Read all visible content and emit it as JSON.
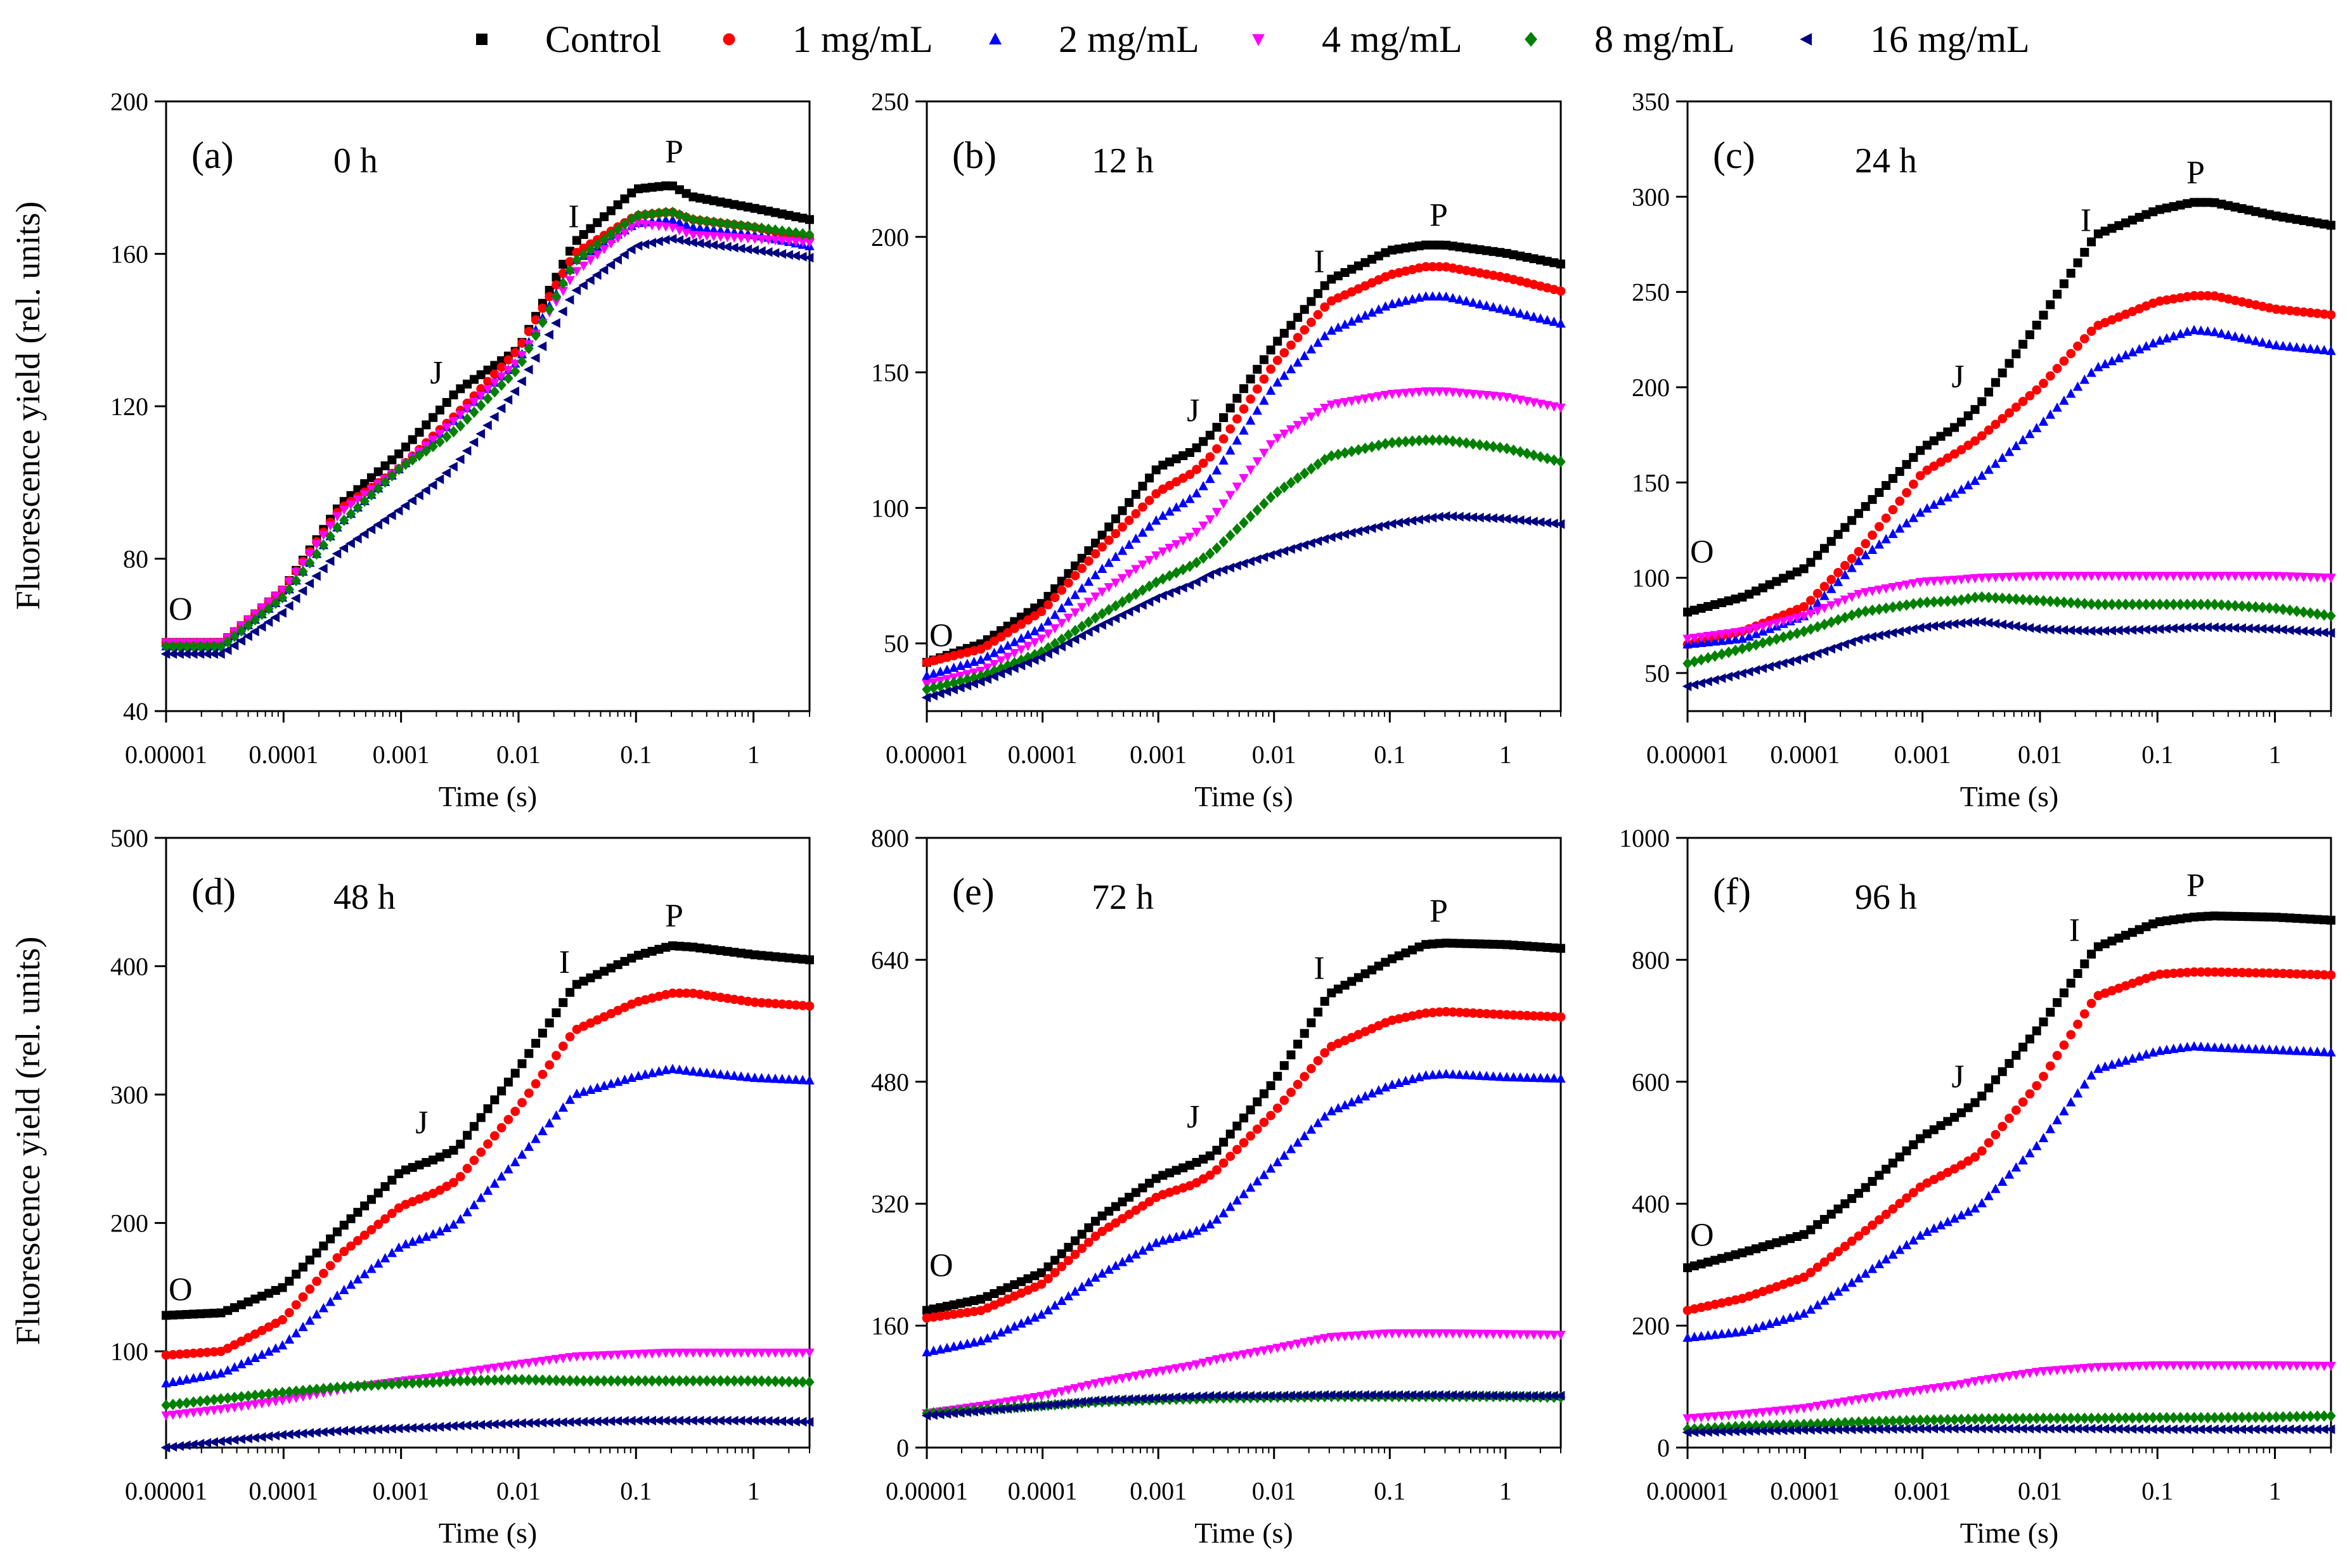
{
  "figure": {
    "ylabel": "Fluorescence yield (rel. units)",
    "xlabel": "Time (s)",
    "legend": [
      {
        "name": "Control",
        "color": "#000000",
        "marker": "square"
      },
      {
        "name": "1 mg/mL",
        "color": "#ff0000",
        "marker": "circle"
      },
      {
        "name": "2 mg/mL",
        "color": "#0000ff",
        "marker": "triangle-up"
      },
      {
        "name": "4 mg/mL",
        "color": "#ff00ff",
        "marker": "triangle-down"
      },
      {
        "name": "8 mg/mL",
        "color": "#008000",
        "marker": "diamond"
      },
      {
        "name": "16 mg/mL",
        "color": "#000080",
        "marker": "triangle-left"
      }
    ]
  },
  "chart_data": [
    {
      "type": "scatter",
      "panel": "(a)",
      "title": "0 h",
      "xlabel": "Time (s)",
      "ylabel": "Fluorescence yield (rel. units)",
      "xscale": "log",
      "xlim": [
        1e-05,
        3
      ],
      "ylim": [
        40,
        200
      ],
      "yticks": [
        40,
        80,
        120,
        160,
        200
      ],
      "xticks": [
        1e-05,
        0.0001,
        0.001,
        0.01,
        0.1,
        1
      ],
      "xticklabels": [
        "0.00001",
        "0.0001",
        "0.001",
        "0.01",
        "0.1",
        "1"
      ],
      "point_labels": [
        {
          "text": "O",
          "x": 1e-05,
          "y": 59
        },
        {
          "text": "J",
          "x": 0.002,
          "y": 121
        },
        {
          "text": "I",
          "x": 0.03,
          "y": 162
        },
        {
          "text": "P",
          "x": 0.2,
          "y": 179
        }
      ],
      "knot_x": [
        1e-05,
        3e-05,
        0.0001,
        0.0003,
        0.001,
        0.002,
        0.003,
        0.01,
        0.03,
        0.1,
        0.2,
        0.3,
        1,
        3
      ],
      "series": [
        {
          "name": "Control",
          "values": [
            58,
            58,
            72,
            94,
            108,
            118,
            124,
            135,
            163,
            177,
            178,
            175,
            172,
            169
          ]
        },
        {
          "name": "1 mg/mL",
          "values": [
            58,
            58,
            72,
            93,
            104,
            113,
            118,
            135,
            160,
            170,
            171,
            169,
            167,
            164
          ]
        },
        {
          "name": "2 mg/mL",
          "values": [
            57,
            57,
            70,
            89,
            104,
            112,
            117,
            132,
            158,
            168,
            169,
            167,
            165,
            162
          ]
        },
        {
          "name": "4 mg/mL",
          "values": [
            58,
            58,
            72,
            92,
            104,
            112,
            117,
            132,
            155,
            168,
            167,
            165,
            164,
            163
          ]
        },
        {
          "name": "8 mg/mL",
          "values": [
            57,
            57,
            70,
            89,
            104,
            110,
            114,
            130,
            158,
            170,
            171,
            169,
            167,
            165
          ]
        },
        {
          "name": "16 mg/mL",
          "values": [
            55,
            55,
            66,
            82,
            93,
            100,
            105,
            125,
            150,
            162,
            164,
            163,
            161,
            159
          ]
        }
      ]
    },
    {
      "type": "scatter",
      "panel": "(b)",
      "title": "12 h",
      "xlabel": "Time (s)",
      "ylabel": "",
      "xscale": "log",
      "xlim": [
        1e-05,
        3
      ],
      "ylim": [
        25,
        250
      ],
      "yticks": [
        50,
        100,
        150,
        200,
        250
      ],
      "xticks": [
        1e-05,
        0.0001,
        0.001,
        0.01,
        0.1,
        1
      ],
      "xticklabels": [
        "0.00001",
        "0.0001",
        "0.001",
        "0.01",
        "0.1",
        "1"
      ],
      "point_labels": [
        {
          "text": "O",
          "x": 1e-05,
          "y": 42
        },
        {
          "text": "J",
          "x": 0.002,
          "y": 125
        },
        {
          "text": "I",
          "x": 0.025,
          "y": 180
        },
        {
          "text": "P",
          "x": 0.25,
          "y": 197
        }
      ],
      "knot_x": [
        1e-05,
        3e-05,
        0.0001,
        0.0003,
        0.001,
        0.002,
        0.003,
        0.01,
        0.03,
        0.1,
        0.2,
        0.3,
        1,
        3
      ],
      "series": [
        {
          "name": "Control",
          "values": [
            43,
            50,
            65,
            88,
            115,
            121,
            128,
            160,
            184,
            195,
            197,
            197,
            194,
            190
          ]
        },
        {
          "name": "1 mg/mL",
          "values": [
            43,
            48,
            62,
            84,
            106,
            113,
            120,
            153,
            176,
            186,
            189,
            189,
            185,
            180
          ]
        },
        {
          "name": "2 mg/mL",
          "values": [
            38,
            44,
            56,
            76,
            96,
            104,
            112,
            145,
            165,
            175,
            178,
            178,
            173,
            168
          ]
        },
        {
          "name": "4 mg/mL",
          "values": [
            35,
            40,
            52,
            68,
            83,
            90,
            97,
            125,
            138,
            142,
            143,
            143,
            141,
            137
          ]
        },
        {
          "name": "8 mg/mL",
          "values": [
            33,
            38,
            47,
            60,
            73,
            79,
            84,
            105,
            119,
            124,
            125,
            125,
            122,
            117
          ]
        },
        {
          "name": "16 mg/mL",
          "values": [
            30,
            36,
            45,
            56,
            67,
            72,
            76,
            83,
            89,
            94,
            96,
            97,
            96,
            94
          ]
        }
      ]
    },
    {
      "type": "scatter",
      "panel": "(c)",
      "title": "24 h",
      "xlabel": "Time (s)",
      "ylabel": "",
      "xscale": "log",
      "xlim": [
        1e-05,
        3
      ],
      "ylim": [
        30,
        350
      ],
      "yticks": [
        50,
        100,
        150,
        200,
        250,
        300,
        350
      ],
      "xticks": [
        1e-05,
        0.0001,
        0.001,
        0.01,
        0.1,
        1
      ],
      "xticklabels": [
        "0.00001",
        "0.0001",
        "0.001",
        "0.01",
        "0.1",
        "1"
      ],
      "point_labels": [
        {
          "text": "O",
          "x": 1e-05,
          "y": 98
        },
        {
          "text": "J",
          "x": 0.002,
          "y": 190
        },
        {
          "text": "I",
          "x": 0.025,
          "y": 272
        },
        {
          "text": "P",
          "x": 0.2,
          "y": 297
        }
      ],
      "knot_x": [
        1e-05,
        3e-05,
        0.0001,
        0.0003,
        0.001,
        0.002,
        0.003,
        0.01,
        0.03,
        0.1,
        0.2,
        0.3,
        1,
        3
      ],
      "series": [
        {
          "name": "Control",
          "values": [
            82,
            90,
            105,
            135,
            168,
            180,
            190,
            235,
            280,
            293,
            297,
            297,
            290,
            285
          ]
        },
        {
          "name": "1 mg/mL",
          "values": [
            65,
            72,
            85,
            115,
            155,
            166,
            173,
            200,
            232,
            245,
            248,
            248,
            241,
            238
          ]
        },
        {
          "name": "2 mg/mL",
          "values": [
            65,
            68,
            80,
            110,
            135,
            145,
            152,
            180,
            210,
            224,
            230,
            229,
            222,
            219
          ]
        },
        {
          "name": "4 mg/mL",
          "values": [
            68,
            72,
            80,
            92,
            98,
            99,
            100,
            101,
            101,
            101,
            101,
            101,
            101,
            100
          ]
        },
        {
          "name": "8 mg/mL",
          "values": [
            55,
            63,
            72,
            82,
            87,
            88,
            90,
            88,
            86,
            86,
            86,
            86,
            84,
            80
          ]
        },
        {
          "name": "16 mg/mL",
          "values": [
            43,
            50,
            58,
            68,
            74,
            76,
            77,
            73,
            72,
            73,
            74,
            74,
            73,
            71
          ]
        }
      ]
    },
    {
      "type": "scatter",
      "panel": "(d)",
      "title": "48 h",
      "xlabel": "Time (s)",
      "ylabel": "Fluorescence yield (rel. units)",
      "xscale": "log",
      "xlim": [
        1e-05,
        3
      ],
      "ylim": [
        25,
        500
      ],
      "yticks": [
        100,
        200,
        300,
        400,
        500
      ],
      "xticks": [
        1e-05,
        0.0001,
        0.001,
        0.01,
        0.1,
        1
      ],
      "xticklabels": [
        "0.00001",
        "0.0001",
        "0.001",
        "0.01",
        "0.1",
        "1"
      ],
      "point_labels": [
        {
          "text": "O",
          "x": 1e-05,
          "y": 125
        },
        {
          "text": "J",
          "x": 0.0015,
          "y": 255
        },
        {
          "text": "I",
          "x": 0.025,
          "y": 380
        },
        {
          "text": "P",
          "x": 0.2,
          "y": 416
        }
      ],
      "knot_x": [
        1e-05,
        3e-05,
        0.0001,
        0.0003,
        0.001,
        0.002,
        0.003,
        0.01,
        0.03,
        0.1,
        0.2,
        0.3,
        1,
        3
      ],
      "series": [
        {
          "name": "Control",
          "values": [
            128,
            130,
            150,
            195,
            240,
            250,
            258,
            320,
            385,
            408,
            416,
            415,
            409,
            405
          ]
        },
        {
          "name": "1 mg/mL",
          "values": [
            97,
            100,
            125,
            175,
            213,
            224,
            233,
            290,
            350,
            372,
            379,
            379,
            372,
            369
          ]
        },
        {
          "name": "2 mg/mL",
          "values": [
            75,
            83,
            105,
            145,
            182,
            192,
            200,
            250,
            300,
            314,
            320,
            318,
            313,
            311
          ]
        },
        {
          "name": "4 mg/mL",
          "values": [
            50,
            55,
            62,
            70,
            77,
            80,
            83,
            90,
            96,
            98,
            99,
            99,
            99,
            99
          ]
        },
        {
          "name": "8 mg/mL",
          "values": [
            58,
            63,
            68,
            72,
            75,
            76,
            77,
            78,
            77,
            77,
            77,
            77,
            77,
            76
          ]
        },
        {
          "name": "16 mg/mL",
          "values": [
            25,
            30,
            35,
            38,
            40,
            41,
            42,
            44,
            45,
            46,
            46,
            46,
            46,
            45
          ]
        }
      ]
    },
    {
      "type": "scatter",
      "panel": "(e)",
      "title": "72 h",
      "xlabel": "Time (s)",
      "ylabel": "",
      "xscale": "log",
      "xlim": [
        1e-05,
        3
      ],
      "ylim": [
        0,
        800
      ],
      "yticks": [
        0,
        160,
        320,
        480,
        640,
        800
      ],
      "xticks": [
        1e-05,
        0.0001,
        0.001,
        0.01,
        0.1,
        1
      ],
      "xticklabels": [
        "0.00001",
        "0.0001",
        "0.001",
        "0.01",
        "0.1",
        "1"
      ],
      "point_labels": [
        {
          "text": "O",
          "x": 1e-05,
          "y": 200
        },
        {
          "text": "J",
          "x": 0.002,
          "y": 395
        },
        {
          "text": "I",
          "x": 0.025,
          "y": 590
        },
        {
          "text": "P",
          "x": 0.25,
          "y": 665
        }
      ],
      "knot_x": [
        1e-05,
        3e-05,
        0.0001,
        0.0003,
        0.001,
        0.002,
        0.003,
        0.01,
        0.03,
        0.1,
        0.2,
        0.3,
        1,
        3
      ],
      "series": [
        {
          "name": "Control",
          "values": [
            180,
            195,
            230,
            300,
            355,
            372,
            385,
            480,
            595,
            640,
            660,
            662,
            660,
            655
          ]
        },
        {
          "name": "1 mg/mL",
          "values": [
            170,
            180,
            215,
            280,
            330,
            345,
            360,
            440,
            525,
            560,
            570,
            572,
            568,
            565
          ]
        },
        {
          "name": "2 mg/mL",
          "values": [
            125,
            140,
            175,
            225,
            270,
            282,
            295,
            370,
            440,
            475,
            488,
            490,
            486,
            484
          ]
        },
        {
          "name": "4 mg/mL",
          "values": [
            45,
            55,
            68,
            85,
            100,
            108,
            115,
            130,
            145,
            150,
            150,
            150,
            149,
            148
          ]
        },
        {
          "name": "8 mg/mL",
          "values": [
            45,
            50,
            55,
            60,
            63,
            64,
            65,
            66,
            67,
            67,
            67,
            67,
            67,
            66
          ]
        },
        {
          "name": "16 mg/mL",
          "values": [
            42,
            48,
            55,
            62,
            65,
            67,
            68,
            68,
            69,
            69,
            69,
            69,
            68,
            68
          ]
        }
      ]
    },
    {
      "type": "scatter",
      "panel": "(f)",
      "title": "96 h",
      "xlabel": "Time (s)",
      "ylabel": "",
      "xscale": "log",
      "xlim": [
        1e-05,
        3
      ],
      "ylim": [
        0,
        1000
      ],
      "yticks": [
        0,
        200,
        400,
        600,
        800,
        1000
      ],
      "xticks": [
        1e-05,
        0.0001,
        0.001,
        0.01,
        0.1,
        1
      ],
      "xticklabels": [
        "0.00001",
        "0.0001",
        "0.001",
        "0.01",
        "0.1",
        "1"
      ],
      "point_labels": [
        {
          "text": "O",
          "x": 1e-05,
          "y": 300
        },
        {
          "text": "J",
          "x": 0.002,
          "y": 560
        },
        {
          "text": "I",
          "x": 0.02,
          "y": 800
        },
        {
          "text": "P",
          "x": 0.2,
          "y": 873
        }
      ],
      "knot_x": [
        1e-05,
        3e-05,
        0.0001,
        0.0003,
        0.001,
        0.002,
        0.003,
        0.01,
        0.03,
        0.1,
        0.2,
        0.3,
        1,
        3
      ],
      "series": [
        {
          "name": "Control",
          "values": [
            295,
            320,
            350,
            420,
            510,
            545,
            570,
            690,
            820,
            862,
            870,
            872,
            870,
            865
          ]
        },
        {
          "name": "1 mg/mL",
          "values": [
            225,
            245,
            280,
            350,
            430,
            460,
            480,
            600,
            740,
            776,
            780,
            780,
            778,
            775
          ]
        },
        {
          "name": "2 mg/mL",
          "values": [
            180,
            190,
            220,
            280,
            350,
            378,
            395,
            500,
            620,
            650,
            658,
            656,
            652,
            648
          ]
        },
        {
          "name": "4 mg/mL",
          "values": [
            48,
            55,
            65,
            80,
            95,
            103,
            110,
            125,
            132,
            135,
            135,
            135,
            135,
            134
          ]
        },
        {
          "name": "8 mg/mL",
          "values": [
            30,
            35,
            38,
            42,
            45,
            46,
            47,
            48,
            48,
            49,
            49,
            49,
            50,
            52
          ]
        },
        {
          "name": "16 mg/mL",
          "values": [
            25,
            27,
            29,
            30,
            31,
            31,
            31,
            31,
            31,
            30,
            30,
            30,
            30,
            30
          ]
        }
      ]
    }
  ]
}
